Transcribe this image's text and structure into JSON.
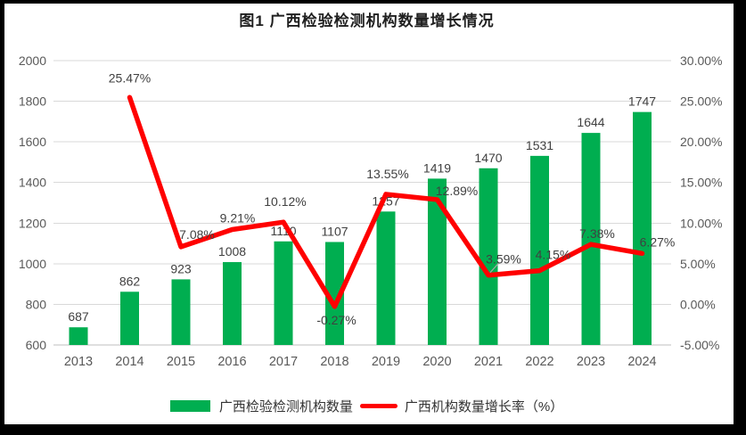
{
  "title": "图1 广西检验检测机构数量增长情况",
  "colors": {
    "bar": "#00AE50",
    "line": "#FF0000",
    "grid": "#D9D9D9",
    "axis_line": "#BFBFBF",
    "axis_text": "#595959",
    "data_label": "#404040",
    "leader": "#A6A6A6",
    "frame": "#000000",
    "background": "#FFFFFF"
  },
  "legend": {
    "items": [
      {
        "label": "广西检验检测机构数量",
        "marker": "bar",
        "color": "#00AE50"
      },
      {
        "label": "广西机构数量增长率（%）",
        "marker": "line",
        "color": "#FF0000"
      }
    ]
  },
  "chart_data": {
    "type": "bar+line",
    "title": "图1 广西检验检测机构数量增长情况",
    "categories": [
      "2013",
      "2014",
      "2015",
      "2016",
      "2017",
      "2018",
      "2019",
      "2020",
      "2021",
      "2022",
      "2023",
      "2024"
    ],
    "series": [
      {
        "name": "广西检验检测机构数量",
        "type": "bar",
        "axis": "left",
        "color": "#00AE50",
        "values": [
          687,
          862,
          923,
          1008,
          1110,
          1107,
          1257,
          1419,
          1470,
          1531,
          1644,
          1747
        ]
      },
      {
        "name": "广西机构数量增长率（%）",
        "type": "line",
        "axis": "right",
        "color": "#FF0000",
        "values": [
          null,
          25.47,
          7.08,
          9.21,
          10.12,
          -0.27,
          13.55,
          12.89,
          3.59,
          4.15,
          7.38,
          6.27
        ]
      }
    ],
    "left_axis": {
      "min": 600,
      "max": 2000,
      "step": 200,
      "tick_labels": [
        "2000",
        "1800",
        "1600",
        "1400",
        "1200",
        "1000",
        "800",
        "600"
      ]
    },
    "right_axis": {
      "min": -5,
      "max": 30,
      "step": 5,
      "tick_labels": [
        "30.00%",
        "25.00%",
        "20.00%",
        "15.00%",
        "10.00%",
        "5.00%",
        "0.00%",
        "-5.00%"
      ]
    },
    "grid": true,
    "legend_position": "bottom",
    "data_labels": true
  }
}
